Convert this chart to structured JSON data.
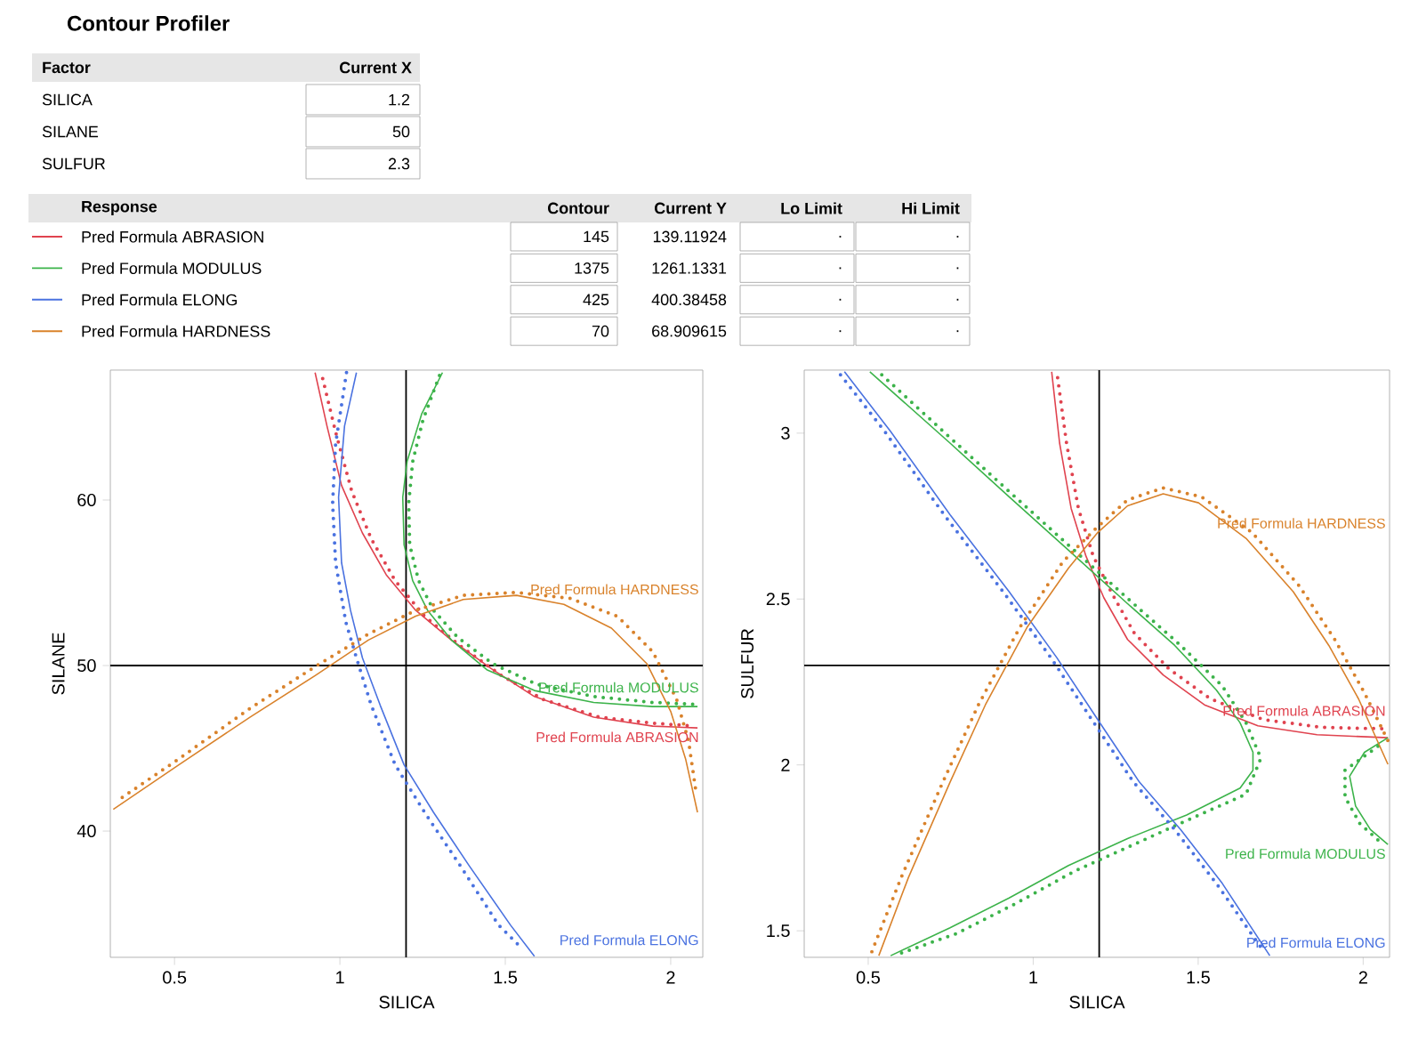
{
  "chart_data": [
    {
      "type": "other",
      "title": "Contour Profiler",
      "annotations": [
        "Factor",
        "Current X",
        "SILICA",
        "1.2",
        "SILANE",
        "50",
        "SULFUR",
        "2.3",
        "Response",
        "Contour",
        "Current Y",
        "Lo Limit",
        "Hi Limit",
        "Pred Formula ABRASION",
        "145",
        "139.11924",
        ".",
        ".",
        "Pred Formula MODULUS",
        "1375",
        "1261.1331",
        ".",
        ".",
        "Pred Formula ELONG",
        "425",
        "400.38458",
        ".",
        ".",
        "Pred Formula HARDNESS",
        "70",
        "68.909615",
        ".",
        "."
      ]
    },
    {
      "type": "line",
      "xlabel": "SILICA",
      "ylabel": "SILANE",
      "xlim": [
        0.306,
        2.097
      ],
      "ylim": [
        32.37,
        67.85
      ],
      "xticks": [
        0.5,
        1,
        1.5,
        2
      ],
      "yticks": [
        40,
        50,
        60
      ],
      "ref_lines": [
        {
          "axis": "x",
          "value": 1.2,
          "color": "#000000"
        },
        {
          "axis": "y",
          "value": 50,
          "color": "#000000"
        }
      ],
      "series": [
        {
          "name": "Pred Formula ABRASION",
          "color": "#e0434f",
          "x": [
            0.925,
            0.961,
            1.005,
            1.068,
            1.14,
            1.229,
            1.337,
            1.462,
            1.588,
            1.767,
            1.946,
            2.081
          ],
          "values": [
            67.7,
            64.47,
            60.88,
            58.01,
            55.49,
            53.34,
            51.54,
            49.75,
            48.13,
            46.88,
            46.34,
            46.23
          ]
        },
        {
          "color": "#e0434f",
          "line_style": "dotted",
          "x": [
            0.948,
            0.987,
            1.036,
            1.095,
            1.167,
            1.256,
            1.364,
            1.489,
            1.615,
            1.785,
            1.946,
            2.072
          ],
          "values": [
            67.34,
            64.11,
            60.52,
            57.65,
            55.13,
            52.98,
            51.18,
            49.39,
            47.95,
            46.88,
            46.52,
            46.34
          ]
        },
        {
          "name": "Pred Formula MODULUS",
          "color": "#3cb34a",
          "x": [
            1.31,
            1.247,
            1.203,
            1.19,
            1.194,
            1.22,
            1.265,
            1.337,
            1.444,
            1.588,
            1.767,
            1.946,
            2.081
          ],
          "values": [
            67.7,
            65.19,
            62.32,
            60.16,
            57.29,
            55.13,
            53.34,
            51.54,
            49.75,
            48.49,
            47.77,
            47.52,
            47.52
          ]
        },
        {
          "color": "#3cb34a",
          "line_style": "dotted",
          "x": [
            1.301,
            1.251,
            1.22,
            1.208,
            1.211,
            1.238,
            1.283,
            1.355,
            1.462,
            1.597,
            1.767,
            1.946,
            2.072
          ],
          "values": [
            67.52,
            64.83,
            62.32,
            59.8,
            57.29,
            55.13,
            53.34,
            51.72,
            50.11,
            48.85,
            48.13,
            47.77,
            47.66
          ]
        },
        {
          "name": "Pred Formula ELONG",
          "color": "#4a72e0",
          "x": [
            1.05,
            1.014,
            0.996,
            1.005,
            1.032,
            1.068,
            1.122,
            1.194,
            1.283,
            1.391,
            1.516,
            1.588
          ],
          "values": [
            67.7,
            64.47,
            60.16,
            56.21,
            53.34,
            50.47,
            47.59,
            44.0,
            41.13,
            37.9,
            34.31,
            32.44
          ]
        },
        {
          "color": "#4a72e0",
          "line_style": "dotted",
          "x": [
            1.02,
            0.987,
            0.978,
            0.987,
            1.018,
            1.05,
            1.095,
            1.167,
            1.256,
            1.364,
            1.48,
            1.552
          ],
          "values": [
            67.7,
            63.39,
            59.8,
            56.21,
            52.62,
            50.47,
            47.59,
            44.0,
            41.13,
            37.9,
            34.31,
            32.87
          ]
        },
        {
          "name": "Pred Formula HARDNESS",
          "color": "#d9822b",
          "x": [
            0.315,
            0.513,
            0.728,
            0.925,
            1.086,
            1.229,
            1.373,
            1.534,
            1.677,
            1.821,
            1.928,
            2.0,
            2.045,
            2.081
          ],
          "values": [
            41.31,
            44.0,
            46.88,
            49.39,
            51.54,
            52.98,
            53.99,
            54.24,
            53.7,
            52.26,
            50.11,
            47.23,
            44.36,
            41.13
          ]
        },
        {
          "color": "#d9822b",
          "line_style": "dotted",
          "x": [
            0.342,
            0.513,
            0.728,
            0.925,
            1.086,
            1.229,
            1.373,
            1.534,
            1.695,
            1.839,
            1.946,
            2.018,
            2.054,
            2.075
          ],
          "values": [
            42.03,
            44.36,
            47.41,
            49.93,
            51.9,
            53.34,
            54.24,
            54.42,
            54.06,
            52.98,
            50.83,
            47.95,
            45.44,
            42.57
          ]
        }
      ]
    },
    {
      "type": "line",
      "xlabel": "SILICA",
      "ylabel": "SULFUR",
      "xlim": [
        0.306,
        2.08
      ],
      "ylim": [
        1.42,
        3.19
      ],
      "xticks": [
        0.5,
        1,
        1.5,
        2
      ],
      "yticks": [
        1.5,
        2,
        2.5,
        3
      ],
      "ref_lines": [
        {
          "axis": "x",
          "value": 1.2,
          "color": "#000000"
        },
        {
          "axis": "y",
          "value": 2.3,
          "color": "#000000"
        }
      ],
      "series": [
        {
          "name": "Pred Formula ABRASION",
          "color": "#e0434f",
          "x": [
            1.056,
            1.08,
            1.115,
            1.16,
            1.214,
            1.286,
            1.394,
            1.519,
            1.681,
            1.86,
            2.075
          ],
          "values": [
            3.185,
            2.97,
            2.773,
            2.629,
            2.504,
            2.378,
            2.271,
            2.181,
            2.118,
            2.091,
            2.082
          ]
        },
        {
          "color": "#e0434f",
          "line_style": "dotted",
          "x": [
            1.074,
            1.101,
            1.137,
            1.182,
            1.236,
            1.307,
            1.412,
            1.537,
            1.699,
            1.878,
            2.058
          ],
          "values": [
            3.167,
            2.97,
            2.773,
            2.629,
            2.522,
            2.396,
            2.289,
            2.199,
            2.136,
            2.113,
            2.109
          ]
        },
        {
          "name": "Pred Formula MODULUS",
          "color": "#3cb34a",
          "x": [
            0.505,
            0.748,
            0.927,
            1.107,
            1.286,
            1.429,
            1.555,
            1.627,
            1.666,
            1.666,
            1.627,
            1.465,
            1.286,
            1.107,
            0.927,
            0.748,
            0.568,
            null,
            2.075,
            2.004,
            1.959,
            1.977,
            2.022,
            2.075
          ],
          "values": [
            3.185,
            2.97,
            2.808,
            2.647,
            2.486,
            2.36,
            2.226,
            2.127,
            2.038,
            1.984,
            1.93,
            1.849,
            1.778,
            1.697,
            1.599,
            1.509,
            1.425,
            null,
            2.082,
            2.038,
            1.966,
            1.876,
            1.805,
            1.76
          ]
        },
        {
          "color": "#3cb34a",
          "line_style": "dotted",
          "x": [
            0.541,
            0.766,
            0.945,
            1.124,
            1.304,
            1.447,
            1.573,
            1.645,
            1.69,
            1.645,
            1.483,
            1.304,
            1.124,
            0.945,
            0.766,
            0.586,
            null,
            2.045,
            1.945,
            1.945,
            1.99,
            2.06
          ],
          "values": [
            3.176,
            2.97,
            2.808,
            2.647,
            2.486,
            2.36,
            2.238,
            2.127,
            2.02,
            1.912,
            1.84,
            1.76,
            1.679,
            1.581,
            1.491,
            1.428,
            null,
            2.056,
            1.984,
            1.903,
            1.823,
            1.76
          ]
        },
        {
          "name": "Pred Formula ELONG",
          "color": "#4a72e0",
          "x": [
            0.428,
            0.568,
            0.748,
            0.927,
            1.071,
            1.196,
            1.322,
            1.447,
            1.573,
            1.717
          ],
          "values": [
            3.185,
            3.005,
            2.754,
            2.522,
            2.324,
            2.136,
            1.948,
            1.805,
            1.643,
            1.425
          ]
        },
        {
          "color": "#4a72e0",
          "line_style": "dotted",
          "x": [
            0.416,
            0.55,
            0.73,
            0.909,
            1.053,
            1.178,
            1.304,
            1.429,
            1.555,
            1.699
          ],
          "values": [
            3.176,
            3.005,
            2.754,
            2.522,
            2.324,
            2.136,
            1.948,
            1.805,
            1.643,
            1.437
          ]
        },
        {
          "name": "Pred Formula HARDNESS",
          "color": "#d9822b",
          "x": [
            0.532,
            0.622,
            0.748,
            0.855,
            0.981,
            1.107,
            1.196,
            1.286,
            1.394,
            1.501,
            1.645,
            1.788,
            1.896,
            1.986,
            2.075
          ],
          "values": [
            1.425,
            1.661,
            1.948,
            2.181,
            2.414,
            2.593,
            2.701,
            2.781,
            2.817,
            2.79,
            2.683,
            2.522,
            2.36,
            2.199,
            2.002
          ]
        },
        {
          "color": "#d9822b",
          "line_style": "dotted",
          "x": [
            0.511,
            0.6,
            0.726,
            0.834,
            0.959,
            1.089,
            1.187,
            1.286,
            1.394,
            1.51,
            1.663,
            1.806,
            1.914,
            2.004,
            2.075
          ],
          "values": [
            1.437,
            1.661,
            1.948,
            2.181,
            2.414,
            2.611,
            2.71,
            2.799,
            2.835,
            2.808,
            2.701,
            2.54,
            2.378,
            2.217,
            2.073
          ]
        }
      ]
    }
  ]
}
